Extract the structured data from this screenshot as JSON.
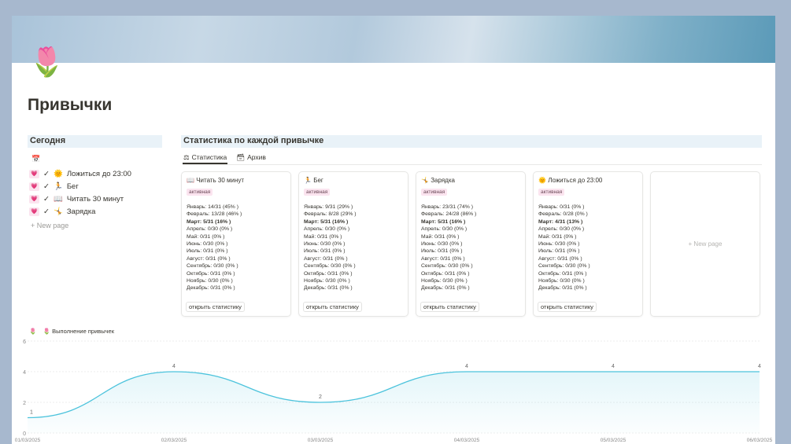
{
  "page": {
    "icon": "🌷",
    "title": "Привычки"
  },
  "today": {
    "header": "Сегодня",
    "calendar_icon": "📅",
    "items": [
      {
        "emoji": "🌞",
        "label": "Ложиться до 23:00"
      },
      {
        "emoji": "🏃",
        "label": "Бег"
      },
      {
        "emoji": "📖",
        "label": "Читать 30 минут"
      },
      {
        "emoji": "🤸",
        "label": "Зарядка"
      }
    ],
    "new_page": "+ New page"
  },
  "stats": {
    "header": "Статистика по каждой привычке",
    "tabs": [
      "Статистика",
      "Архив"
    ],
    "cards": [
      {
        "emoji": "📖",
        "name": "Читать 30 минут",
        "status": "активная",
        "months": [
          "Январь: 14/31 (45% )",
          "Февраль: 13/28 (46% )",
          "Март: 5/31 (16% )",
          "Апрель: 0/30 (0% )",
          "Май: 0/31 (0% )",
          "Июнь: 0/30 (0% )",
          "Июль: 0/31 (0% )",
          "Август: 0/31 (0% )",
          "Сентябрь: 0/30 (0% )",
          "Октябрь: 0/31 (0% )",
          "Ноябрь: 0/30 (0% )",
          "Декабрь: 0/31 (0% )"
        ],
        "button": "открыть статистику"
      },
      {
        "emoji": "🏃",
        "name": "Бег",
        "status": "активная",
        "months": [
          "Январь: 9/31 (29% )",
          "Февраль: 8/28 (29% )",
          "Март: 5/31 (16% )",
          "Апрель: 0/30 (0% )",
          "Май: 0/31 (0% )",
          "Июнь: 0/30 (0% )",
          "Июль: 0/31 (0% )",
          "Август: 0/31 (0% )",
          "Сентябрь: 0/30 (0% )",
          "Октябрь: 0/31 (0% )",
          "Ноябрь: 0/30 (0% )",
          "Декабрь: 0/31 (0% )"
        ],
        "button": "открыть статистику"
      },
      {
        "emoji": "🤸",
        "name": "Зарядка",
        "status": "активная",
        "months": [
          "Январь: 23/31 (74% )",
          "Февраль: 24/28 (86% )",
          "Март: 5/31 (16% )",
          "Апрель: 0/30 (0% )",
          "Май: 0/31 (0% )",
          "Июнь: 0/30 (0% )",
          "Июль: 0/31 (0% )",
          "Август: 0/31 (0% )",
          "Сентябрь: 0/30 (0% )",
          "Октябрь: 0/31 (0% )",
          "Ноябрь: 0/30 (0% )",
          "Декабрь: 0/31 (0% )"
        ],
        "button": "открыть статистику"
      },
      {
        "emoji": "🌞",
        "name": "Ложиться до 23:00",
        "status": "активная",
        "months": [
          "Январь: 0/31 (0% )",
          "Февраль: 0/28 (0% )",
          "Март: 4/31 (13% )",
          "Апрель: 0/30 (0% )",
          "Май: 0/31 (0% )",
          "Июнь: 0/30 (0% )",
          "Июль: 0/31 (0% )",
          "Август: 0/31 (0% )",
          "Сентябрь: 0/30 (0% )",
          "Октябрь: 0/31 (0% )",
          "Ноябрь: 0/30 (0% )",
          "Декабрь: 0/31 (0% )"
        ],
        "button": "открыть статистику"
      }
    ],
    "new_page": "+ New page"
  },
  "chart_data": {
    "type": "area",
    "title": "Выполнение привычек",
    "x": [
      "01/03/2025",
      "02/03/2025",
      "03/03/2025",
      "04/03/2025",
      "05/03/2025",
      "06/03/2025"
    ],
    "values": [
      1,
      4,
      2,
      4,
      4,
      4
    ],
    "ylim": [
      0,
      6
    ],
    "yticks": [
      0,
      2,
      4,
      6
    ],
    "color": "#4cc3dc",
    "grid": true
  }
}
